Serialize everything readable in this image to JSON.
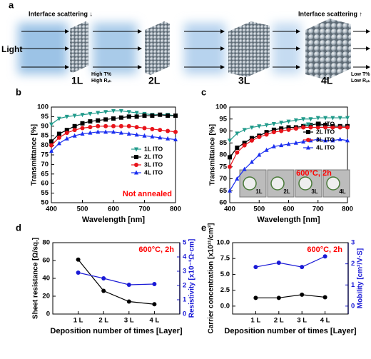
{
  "diagram": {
    "label": "a",
    "scatter_low": "Interface scattering ↓",
    "scatter_high": "Interface scattering ↑",
    "light": "Light",
    "layers": [
      "1L",
      "2L",
      "3L",
      "4L"
    ],
    "high_t": "High T%",
    "high_r": "High Rₛₕ",
    "low_t": "Low T%",
    "low_r": "Low Rₛₕ"
  },
  "chart_data": [
    {
      "type": "line",
      "label": "b",
      "xlabel": "Wavelength [nm]",
      "ylabel": "Transmittance [%]",
      "x": [
        400,
        425,
        450,
        475,
        500,
        525,
        550,
        575,
        600,
        625,
        650,
        675,
        700,
        725,
        750,
        775,
        800
      ],
      "xlim": [
        400,
        800
      ],
      "xticks": [
        400,
        500,
        600,
        700,
        800
      ],
      "ylim": [
        50,
        100
      ],
      "yticks": [
        50,
        55,
        60,
        65,
        70,
        75,
        80,
        85,
        90,
        95,
        100
      ],
      "legend": "center-right",
      "annotation": "Not annealed",
      "annotation_color": "#ff0000",
      "series": [
        {
          "name": "1L ITO",
          "color": "#1f9a8a",
          "marker": "triangle-down",
          "values": [
            91,
            94,
            95,
            95.5,
            96,
            96.5,
            97,
            97.5,
            98,
            98,
            97.5,
            97,
            96.5,
            96,
            96,
            96,
            95.5
          ]
        },
        {
          "name": "2L ITO",
          "color": "#000000",
          "marker": "square",
          "values": [
            82,
            86,
            88,
            90,
            91.5,
            92.5,
            93,
            93.5,
            94,
            94.5,
            95,
            95,
            95.5,
            95.5,
            96,
            95.5,
            95.5
          ]
        },
        {
          "name": "3L ITO",
          "color": "#e8141b",
          "marker": "circle",
          "values": [
            80,
            84,
            86.5,
            88,
            89,
            89.5,
            90,
            90,
            90,
            90,
            90,
            89.5,
            89,
            88.5,
            88,
            87.5,
            87
          ]
        },
        {
          "name": "4L ITO",
          "color": "#1a2ef0",
          "marker": "triangle-up",
          "values": [
            77,
            81,
            83.5,
            85,
            86,
            86.5,
            87,
            87,
            87,
            86.5,
            86,
            85.5,
            85,
            84.5,
            84,
            83.5,
            83
          ]
        }
      ]
    },
    {
      "type": "line",
      "label": "c",
      "xlabel": "Wavelength [nm]",
      "ylabel": "Transmittance [%]",
      "x": [
        400,
        425,
        450,
        475,
        500,
        525,
        550,
        575,
        600,
        625,
        650,
        675,
        700,
        725,
        750,
        775,
        800
      ],
      "xlim": [
        400,
        800
      ],
      "xticks": [
        400,
        500,
        600,
        700,
        800
      ],
      "ylim": [
        60,
        100
      ],
      "yticks": [
        60,
        65,
        70,
        75,
        80,
        85,
        90,
        95,
        100
      ],
      "legend": "center-right",
      "annotation": "600°C, 2h",
      "annotation_color": "#ff0000",
      "inset_labels": [
        "1L",
        "2L",
        "3L",
        "4L"
      ],
      "series": [
        {
          "name": "1L ITO",
          "color": "#1f9a8a",
          "marker": "triangle-down",
          "values": [
            86,
            89,
            90.5,
            91.5,
            92,
            92.5,
            93,
            93.5,
            94,
            94.5,
            95,
            95,
            95.5,
            95.5,
            95.5,
            95.5,
            95.5
          ]
        },
        {
          "name": "2L ITO",
          "color": "#000000",
          "marker": "square",
          "values": [
            79,
            83,
            85,
            87,
            88,
            89.5,
            90.5,
            91,
            91.5,
            91.5,
            92,
            92.5,
            93,
            92.5,
            92,
            92,
            92
          ]
        },
        {
          "name": "3L ITO",
          "color": "#e8141b",
          "marker": "circle",
          "values": [
            75,
            81,
            84,
            86,
            87.5,
            88.5,
            89.5,
            90,
            90.5,
            91,
            91.5,
            91.5,
            91.5,
            91.5,
            91.5,
            91.5,
            91.5
          ]
        },
        {
          "name": "4L ITO",
          "color": "#1a2ef0",
          "marker": "triangle-up",
          "values": [
            65,
            70,
            74,
            77,
            80,
            82,
            83.5,
            84,
            84.5,
            85,
            85.5,
            86,
            86.5,
            86,
            86,
            86.5,
            86
          ]
        }
      ]
    },
    {
      "type": "line",
      "label": "d",
      "xlabel": "Deposition number of times [Layer]",
      "ylabel": "Sheet resistance [Ω/sq.]",
      "y2label": "Resistivity [x10⁻³Ω·cm]",
      "categories": [
        "1 L",
        "2 L",
        "3 L",
        "4 L"
      ],
      "ylim": [
        0,
        80
      ],
      "yticks": [
        0,
        20,
        40,
        60,
        80
      ],
      "y2lim": [
        0,
        5
      ],
      "y2ticks": [
        0,
        1,
        2,
        3,
        4,
        5
      ],
      "y2color": "#1a1ad6",
      "annotation": "600°C, 2h",
      "annotation_color": "#ff0000",
      "series": [
        {
          "color": "#000000",
          "marker": "circle",
          "values": [
            61,
            26,
            14,
            11
          ]
        },
        {
          "color": "#1a1ad6",
          "marker": "circle",
          "axis": "y2",
          "values": [
            2.9,
            2.5,
            2.05,
            2.1
          ]
        }
      ]
    },
    {
      "type": "line",
      "label": "e",
      "xlabel": "Deposition number of times [Layer]",
      "ylabel": "Carrier concentration [x10²¹/cm³]",
      "y2label": "Mobility [cm²/V·S]",
      "categories": [
        "1 L",
        "2 L",
        "3 L",
        "4 L"
      ],
      "ylim": [
        -1.25,
        10
      ],
      "yticks": [
        {
          "value": 0,
          "label": "0.0"
        },
        {
          "value": 2.5,
          "label": "2.5"
        },
        {
          "value": 5,
          "label": "5.0"
        },
        {
          "value": 7.5,
          "label": "7.5"
        },
        {
          "value": 10,
          "label": "10.0"
        }
      ],
      "y2lim": [
        -0.375,
        3
      ],
      "y2ticks": [
        0,
        1,
        2,
        3
      ],
      "y2color": "#1a1ad6",
      "annotation": "600°C, 2h",
      "annotation_color": "#ff0000",
      "series": [
        {
          "color": "#000000",
          "marker": "circle",
          "values": [
            1.3,
            1.3,
            1.8,
            1.4
          ]
        },
        {
          "color": "#1a1ad6",
          "marker": "circle",
          "axis": "y2",
          "values": [
            1.85,
            2.05,
            1.85,
            2.35
          ]
        }
      ]
    }
  ]
}
